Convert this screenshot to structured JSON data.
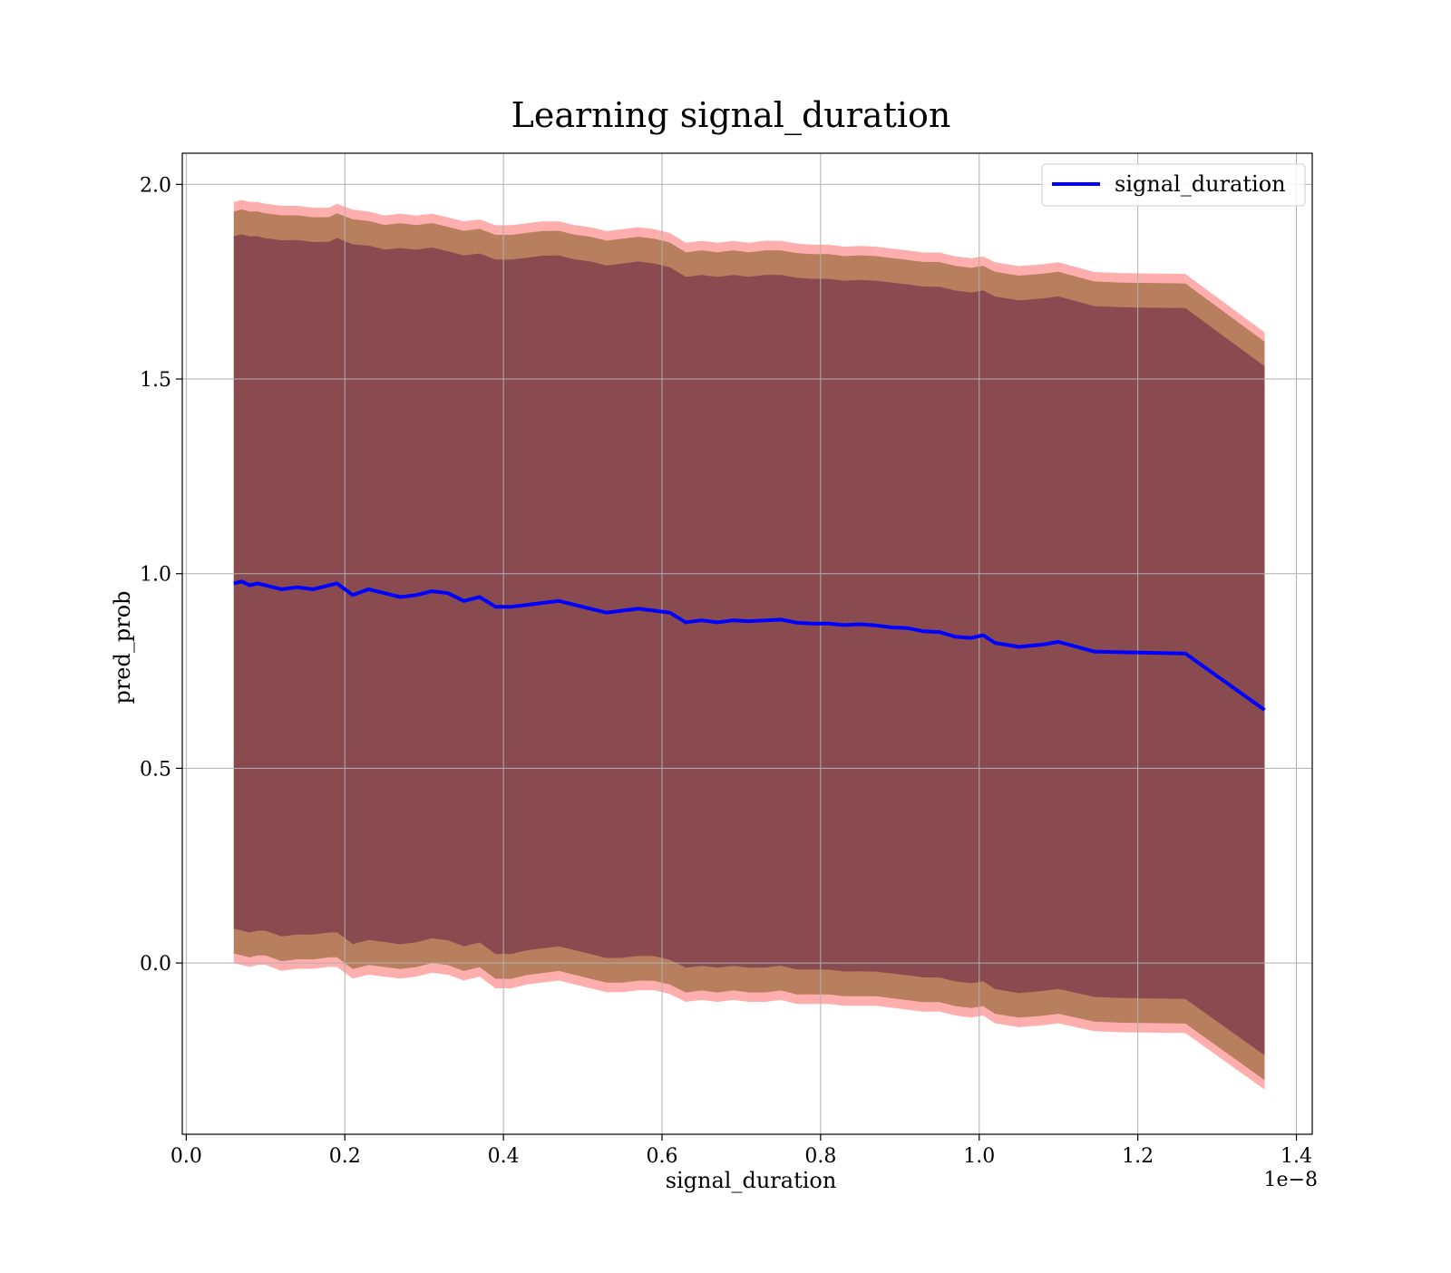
{
  "chart_data": {
    "type": "line",
    "title": "Learning signal_duration",
    "xlabel": "signal_duration",
    "ylabel": "pred_prob",
    "x_offset_label": "1e−8",
    "xlim": [
      -0.005,
      1.42
    ],
    "ylim": [
      -0.44,
      2.08
    ],
    "x_ticks": [
      0.0,
      0.2,
      0.4,
      0.6,
      0.8,
      1.0,
      1.2,
      1.4
    ],
    "x_tick_labels": [
      "0.0",
      "0.2",
      "0.4",
      "0.6",
      "0.8",
      "1.0",
      "1.2",
      "1.4"
    ],
    "y_ticks": [
      0.0,
      0.5,
      1.0,
      1.5,
      2.0
    ],
    "y_tick_labels": [
      "0.0",
      "0.5",
      "1.0",
      "1.5",
      "2.0"
    ],
    "grid": true,
    "legend_position": "top-right",
    "colors": {
      "line": "#0000ff",
      "outer_band": "#ff8c8c",
      "middle_band": "#b47c5a",
      "inner_band": "#7a3a4c"
    },
    "series": [
      {
        "name": "signal_duration",
        "x": [
          0.06,
          0.07,
          0.08,
          0.09,
          0.1,
          0.12,
          0.14,
          0.16,
          0.18,
          0.19,
          0.21,
          0.23,
          0.25,
          0.27,
          0.29,
          0.31,
          0.33,
          0.35,
          0.37,
          0.39,
          0.41,
          0.43,
          0.45,
          0.47,
          0.49,
          0.51,
          0.53,
          0.55,
          0.57,
          0.59,
          0.61,
          0.63,
          0.65,
          0.67,
          0.69,
          0.71,
          0.73,
          0.75,
          0.77,
          0.79,
          0.81,
          0.83,
          0.85,
          0.87,
          0.89,
          0.91,
          0.93,
          0.95,
          0.97,
          0.99,
          1.005,
          1.02,
          1.05,
          1.08,
          1.1,
          1.145,
          1.18,
          1.26,
          1.36
        ],
        "y": [
          0.975,
          0.98,
          0.97,
          0.975,
          0.97,
          0.96,
          0.965,
          0.96,
          0.97,
          0.975,
          0.945,
          0.96,
          0.95,
          0.94,
          0.945,
          0.955,
          0.95,
          0.93,
          0.94,
          0.915,
          0.915,
          0.92,
          0.925,
          0.93,
          0.92,
          0.91,
          0.9,
          0.905,
          0.91,
          0.905,
          0.9,
          0.875,
          0.88,
          0.875,
          0.88,
          0.878,
          0.88,
          0.882,
          0.874,
          0.872,
          0.872,
          0.868,
          0.87,
          0.867,
          0.862,
          0.86,
          0.852,
          0.85,
          0.838,
          0.835,
          0.842,
          0.822,
          0.812,
          0.818,
          0.825,
          0.8,
          0.798,
          0.795,
          0.65
        ],
        "outer_upper": [
          1.955,
          1.96,
          1.955,
          1.955,
          1.95,
          1.945,
          1.945,
          1.94,
          1.94,
          1.95,
          1.935,
          1.93,
          1.92,
          1.925,
          1.92,
          1.925,
          1.915,
          1.905,
          1.91,
          1.895,
          1.895,
          1.9,
          1.905,
          1.905,
          1.895,
          1.89,
          1.88,
          1.885,
          1.89,
          1.885,
          1.875,
          1.85,
          1.855,
          1.85,
          1.855,
          1.85,
          1.855,
          1.855,
          1.848,
          1.845,
          1.845,
          1.84,
          1.842,
          1.84,
          1.835,
          1.83,
          1.825,
          1.825,
          1.815,
          1.81,
          1.815,
          1.8,
          1.79,
          1.795,
          1.8,
          1.775,
          1.772,
          1.77,
          1.62
        ],
        "outer_lower": [
          0.0,
          -0.005,
          -0.01,
          -0.005,
          -0.005,
          -0.02,
          -0.015,
          -0.015,
          -0.01,
          -0.01,
          -0.04,
          -0.03,
          -0.035,
          -0.04,
          -0.035,
          -0.025,
          -0.03,
          -0.045,
          -0.035,
          -0.065,
          -0.065,
          -0.055,
          -0.05,
          -0.045,
          -0.055,
          -0.065,
          -0.075,
          -0.075,
          -0.07,
          -0.07,
          -0.08,
          -0.1,
          -0.095,
          -0.1,
          -0.095,
          -0.1,
          -0.1,
          -0.095,
          -0.105,
          -0.105,
          -0.105,
          -0.11,
          -0.11,
          -0.11,
          -0.115,
          -0.12,
          -0.125,
          -0.125,
          -0.135,
          -0.14,
          -0.135,
          -0.155,
          -0.165,
          -0.16,
          -0.155,
          -0.175,
          -0.178,
          -0.18,
          -0.325
        ]
      }
    ]
  }
}
